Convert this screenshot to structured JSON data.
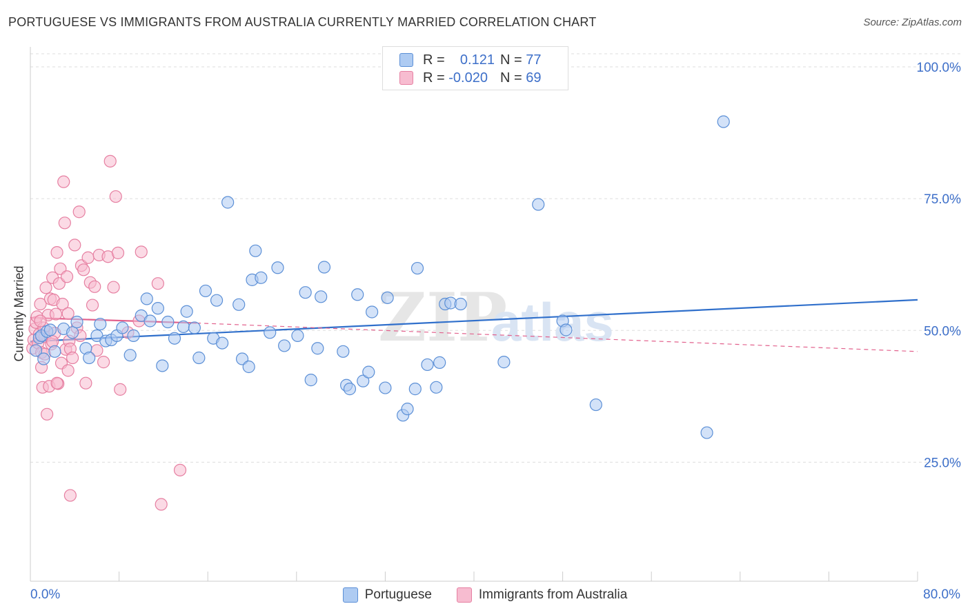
{
  "header": {
    "title": "PORTUGUESE VS IMMIGRANTS FROM AUSTRALIA CURRENTLY MARRIED CORRELATION CHART",
    "source": "Source: ZipAtlas.com"
  },
  "watermark": {
    "text_a": "ZIP",
    "text_b": "atlas"
  },
  "colors": {
    "blue_fill": "#aecbf2",
    "blue_stroke": "#5b8fd6",
    "blue_line": "#2f6fcb",
    "pink_fill": "#f7bcd0",
    "pink_stroke": "#e67fa1",
    "pink_line": "#e2608c",
    "axis_label": "#3d6fc9",
    "grid": "#dddddd"
  },
  "legend": {
    "rows": [
      {
        "r_label": "R =",
        "r_value": "0.121",
        "n_label": "N =",
        "n_value": "77"
      },
      {
        "r_label": "R =",
        "r_value": "-0.020",
        "n_label": "N =",
        "n_value": "69"
      }
    ]
  },
  "chart_data": {
    "type": "scatter",
    "title": "PORTUGUESE VS IMMIGRANTS FROM AUSTRALIA CURRENTLY MARRIED CORRELATION CHART",
    "ylabel": "Currently Married",
    "xlabel": "",
    "xlim": [
      0,
      80
    ],
    "ylim": [
      0,
      105
    ],
    "x_tick_labels": [
      "0.0%",
      "80.0%"
    ],
    "y_ticks": [
      25,
      50,
      75,
      100
    ],
    "y_tick_labels": [
      "25.0%",
      "50.0%",
      "75.0%",
      "100.0%"
    ],
    "grid": "horizontal dashed",
    "legend_position": "top-center",
    "series": [
      {
        "name": "Portuguese",
        "color": "#aecbf2",
        "r": 0.121,
        "n": 77,
        "trend": {
          "x": [
            0,
            80
          ],
          "y": [
            47.9,
            55.8
          ]
        },
        "points": [
          [
            0.5,
            46.2
          ],
          [
            0.8,
            48.6
          ],
          [
            1.0,
            49.0
          ],
          [
            1.5,
            49.8
          ],
          [
            1.8,
            50.1
          ],
          [
            2.2,
            46.0
          ],
          [
            3.0,
            50.3
          ],
          [
            3.8,
            49.6
          ],
          [
            4.2,
            51.6
          ],
          [
            5.0,
            46.6
          ],
          [
            5.3,
            44.8
          ],
          [
            6.0,
            49.0
          ],
          [
            6.3,
            51.2
          ],
          [
            6.8,
            48.0
          ],
          [
            7.3,
            48.2
          ],
          [
            7.8,
            49.0
          ],
          [
            8.3,
            50.5
          ],
          [
            9.0,
            45.3
          ],
          [
            9.3,
            49.0
          ],
          [
            10.0,
            52.8
          ],
          [
            10.5,
            56.0
          ],
          [
            10.8,
            51.8
          ],
          [
            11.5,
            54.2
          ],
          [
            11.9,
            43.3
          ],
          [
            12.4,
            51.6
          ],
          [
            13.0,
            48.5
          ],
          [
            13.8,
            50.7
          ],
          [
            14.1,
            53.6
          ],
          [
            14.8,
            50.5
          ],
          [
            15.2,
            44.8
          ],
          [
            15.8,
            57.5
          ],
          [
            16.5,
            48.5
          ],
          [
            16.8,
            55.7
          ],
          [
            17.3,
            47.6
          ],
          [
            17.8,
            74.3
          ],
          [
            18.8,
            54.9
          ],
          [
            19.1,
            44.6
          ],
          [
            19.7,
            43.1
          ],
          [
            20.0,
            59.6
          ],
          [
            20.3,
            65.1
          ],
          [
            20.8,
            60.0
          ],
          [
            21.6,
            49.6
          ],
          [
            22.3,
            61.9
          ],
          [
            22.9,
            47.1
          ],
          [
            24.1,
            49.0
          ],
          [
            24.8,
            57.2
          ],
          [
            25.3,
            40.6
          ],
          [
            25.9,
            46.6
          ],
          [
            26.2,
            56.4
          ],
          [
            26.5,
            62.0
          ],
          [
            28.2,
            46.0
          ],
          [
            28.5,
            39.6
          ],
          [
            28.8,
            38.9
          ],
          [
            29.5,
            56.8
          ],
          [
            30.0,
            40.4
          ],
          [
            30.5,
            42.1
          ],
          [
            30.8,
            53.5
          ],
          [
            32.0,
            39.1
          ],
          [
            32.2,
            56.2
          ],
          [
            33.6,
            33.9
          ],
          [
            34.0,
            35.1
          ],
          [
            34.7,
            38.9
          ],
          [
            34.9,
            61.8
          ],
          [
            35.8,
            43.5
          ],
          [
            36.6,
            39.2
          ],
          [
            36.9,
            43.9
          ],
          [
            37.4,
            55.0
          ],
          [
            37.9,
            55.2
          ],
          [
            38.8,
            55.0
          ],
          [
            42.7,
            44.0
          ],
          [
            45.8,
            73.9
          ],
          [
            48.0,
            51.8
          ],
          [
            48.3,
            50.1
          ],
          [
            51.0,
            35.9
          ],
          [
            61.0,
            30.6
          ],
          [
            62.5,
            89.6
          ],
          [
            1.2,
            44.6
          ]
        ]
      },
      {
        "name": "Immigrants from Australia",
        "color": "#f7bcd0",
        "r": -0.02,
        "n": 69,
        "trend_solid": {
          "x": [
            0,
            15
          ],
          "y": [
            52.4,
            51.4
          ]
        },
        "trend_dashed": {
          "x": [
            15,
            80
          ],
          "y": [
            51.4,
            46.0
          ]
        },
        "points": [
          [
            0.2,
            46.6
          ],
          [
            0.3,
            48.2
          ],
          [
            0.4,
            50.3
          ],
          [
            0.5,
            51.5
          ],
          [
            0.6,
            52.6
          ],
          [
            0.7,
            47.6
          ],
          [
            0.8,
            49.3
          ],
          [
            0.9,
            55.0
          ],
          [
            1.0,
            45.8
          ],
          [
            1.0,
            43.0
          ],
          [
            1.1,
            39.2
          ],
          [
            1.2,
            50.5
          ],
          [
            1.3,
            48.8
          ],
          [
            1.4,
            58.1
          ],
          [
            1.5,
            34.1
          ],
          [
            1.6,
            52.9
          ],
          [
            1.7,
            39.4
          ],
          [
            1.8,
            56.0
          ],
          [
            1.9,
            47.4
          ],
          [
            2.0,
            60.0
          ],
          [
            2.1,
            55.8
          ],
          [
            2.2,
            49.5
          ],
          [
            2.3,
            53.1
          ],
          [
            2.4,
            64.8
          ],
          [
            2.5,
            39.9
          ],
          [
            2.6,
            58.9
          ],
          [
            2.7,
            61.7
          ],
          [
            2.8,
            43.8
          ],
          [
            2.9,
            55.0
          ],
          [
            3.0,
            78.2
          ],
          [
            3.1,
            70.4
          ],
          [
            3.2,
            46.4
          ],
          [
            3.3,
            60.2
          ],
          [
            3.4,
            42.4
          ],
          [
            3.5,
            48.0
          ],
          [
            3.6,
            46.5
          ],
          [
            3.8,
            44.8
          ],
          [
            4.0,
            66.2
          ],
          [
            4.2,
            50.5
          ],
          [
            4.4,
            72.5
          ],
          [
            4.6,
            62.3
          ],
          [
            4.8,
            61.5
          ],
          [
            5.0,
            40.0
          ],
          [
            5.2,
            63.8
          ],
          [
            5.4,
            59.1
          ],
          [
            5.6,
            54.8
          ],
          [
            5.8,
            58.3
          ],
          [
            6.0,
            46.2
          ],
          [
            6.2,
            64.3
          ],
          [
            6.6,
            44.0
          ],
          [
            7.0,
            64.0
          ],
          [
            7.2,
            82.1
          ],
          [
            7.5,
            58.2
          ],
          [
            7.7,
            75.4
          ],
          [
            7.9,
            64.7
          ],
          [
            8.1,
            38.8
          ],
          [
            9.8,
            51.8
          ],
          [
            10.0,
            64.9
          ],
          [
            11.5,
            58.9
          ],
          [
            11.8,
            17.0
          ],
          [
            3.6,
            18.7
          ],
          [
            13.5,
            23.5
          ],
          [
            2.4,
            40.0
          ],
          [
            1.3,
            45.5
          ],
          [
            0.9,
            51.8
          ],
          [
            3.4,
            53.2
          ],
          [
            2.0,
            47.9
          ],
          [
            8.8,
            49.6
          ],
          [
            4.5,
            49.0
          ]
        ]
      }
    ]
  },
  "bottom_legend": {
    "items": [
      {
        "label": "Portuguese"
      },
      {
        "label": "Immigrants from Australia"
      }
    ]
  }
}
